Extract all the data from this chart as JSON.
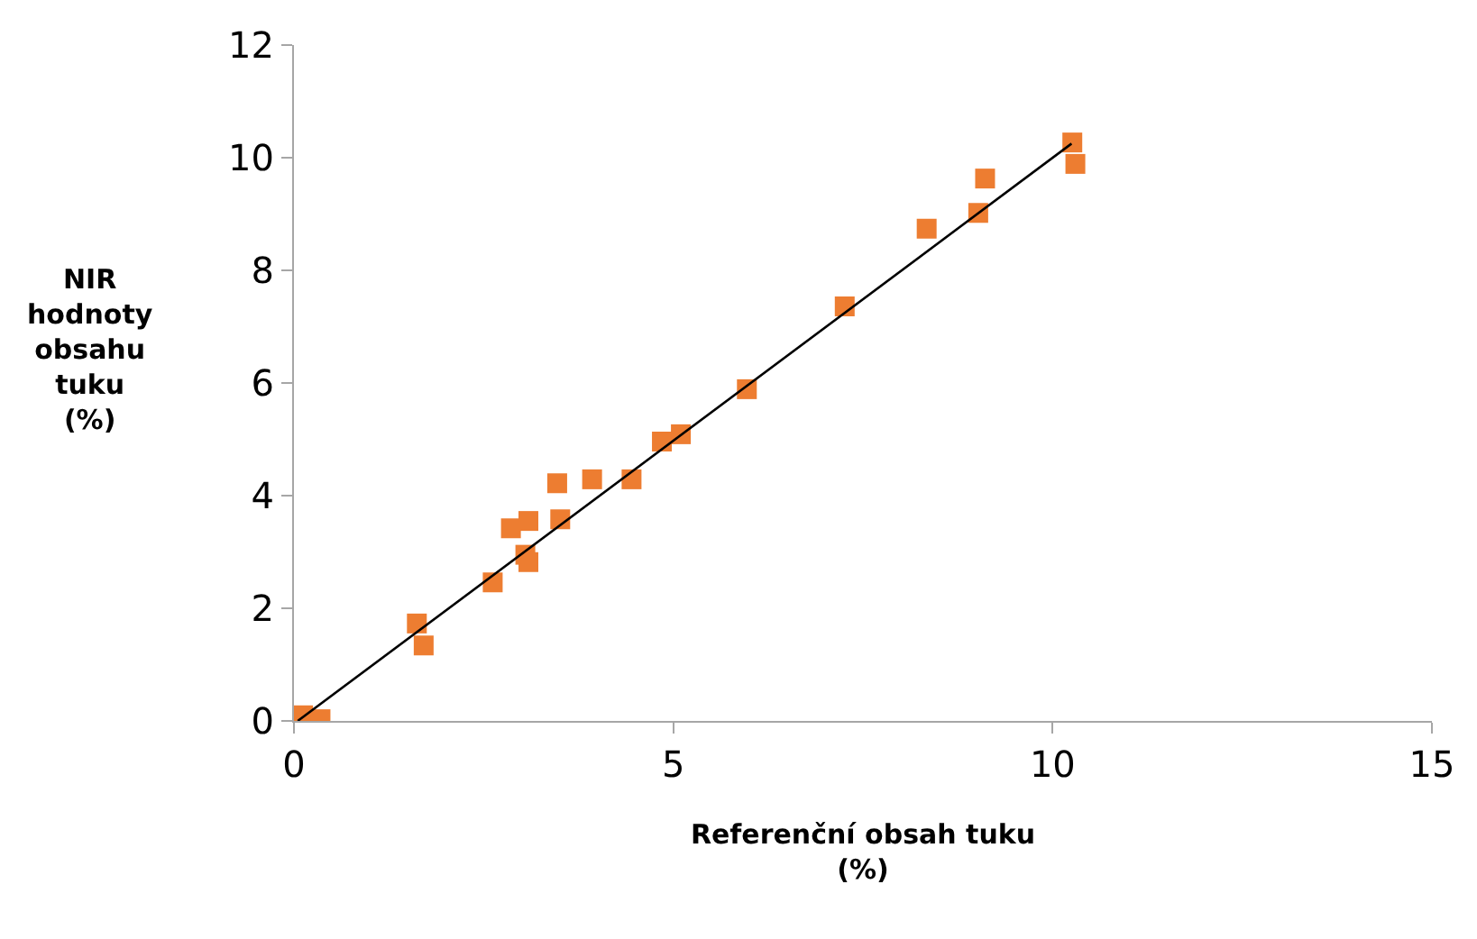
{
  "chart_data": {
    "type": "scatter",
    "xlabel": "Referenční obsah tuku (%)",
    "ylabel": "NIR hodnoty obsahu tuku (%)",
    "xlim": [
      0,
      15
    ],
    "xticks": [
      0,
      5,
      10,
      15
    ],
    "ylim": [
      0,
      12
    ],
    "yticks": [
      0,
      2,
      4,
      6,
      8,
      10,
      12
    ],
    "marker": "square",
    "series": [
      {
        "color": "#ed7d31",
        "x": [
          0.12,
          0.35,
          1.62,
          1.71,
          2.62,
          2.86,
          3.05,
          3.09,
          3.09,
          3.47,
          3.51,
          3.93,
          4.45,
          4.85,
          5.1,
          5.97,
          7.26,
          8.34,
          9.02,
          9.11,
          10.26,
          10.3
        ],
        "values": [
          0.1,
          0.03,
          1.73,
          1.34,
          2.46,
          3.42,
          2.95,
          2.82,
          3.55,
          4.22,
          3.58,
          4.29,
          4.29,
          4.96,
          5.09,
          5.89,
          7.36,
          8.74,
          9.02,
          9.63,
          10.27,
          9.89
        ]
      },
      {
        "type": "line",
        "marker": "none",
        "color": "#000000",
        "x": [
          0.05,
          10.25
        ],
        "values": [
          0.0,
          10.25
        ]
      }
    ]
  }
}
